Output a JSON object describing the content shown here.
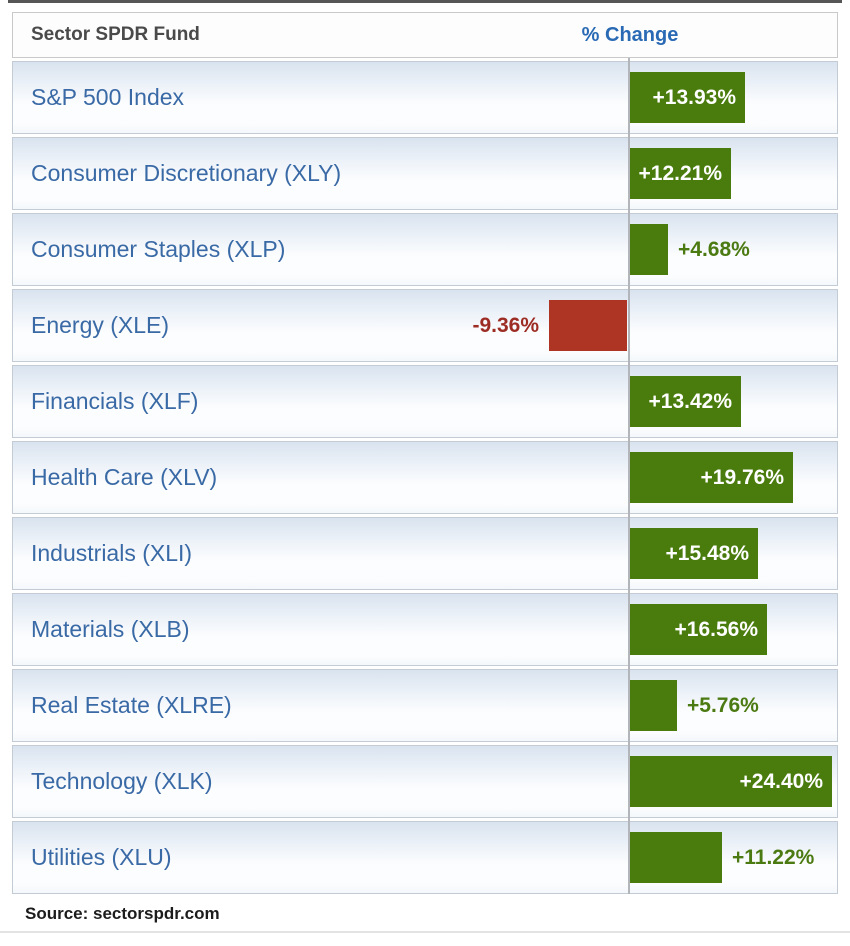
{
  "header": {
    "fund_column": "Sector SPDR Fund",
    "change_column": "% Change"
  },
  "footer": {
    "source": "Source: sectorspdr.com"
  },
  "chart_data": {
    "type": "bar",
    "orientation": "horizontal",
    "value_unit": "%",
    "baseline": 0,
    "axis_max_abs": 24.4,
    "positive_color": "#497c0c",
    "negative_color": "#ae3524",
    "inside_label_color": "#ffffff",
    "positive_label_color": "#4c7a12",
    "negative_label_color": "#9d2d24",
    "rows": [
      {
        "label": "S&P 500 Index",
        "value": 13.93,
        "display": "+13.93%",
        "label_position": "inside"
      },
      {
        "label": "Consumer Discretionary (XLY)",
        "value": 12.21,
        "display": "+12.21%",
        "label_position": "inside"
      },
      {
        "label": "Consumer Staples (XLP)",
        "value": 4.68,
        "display": "+4.68%",
        "label_position": "outside"
      },
      {
        "label": "Energy (XLE)",
        "value": -9.36,
        "display": "-9.36%",
        "label_position": "outside"
      },
      {
        "label": "Financials (XLF)",
        "value": 13.42,
        "display": "+13.42%",
        "label_position": "inside"
      },
      {
        "label": "Health Care (XLV)",
        "value": 19.76,
        "display": "+19.76%",
        "label_position": "inside"
      },
      {
        "label": "Industrials (XLI)",
        "value": 15.48,
        "display": "+15.48%",
        "label_position": "inside"
      },
      {
        "label": "Materials (XLB)",
        "value": 16.56,
        "display": "+16.56%",
        "label_position": "inside"
      },
      {
        "label": "Real Estate (XLRE)",
        "value": 5.76,
        "display": "+5.76%",
        "label_position": "outside"
      },
      {
        "label": "Technology (XLK)",
        "value": 24.4,
        "display": "+24.40%",
        "label_position": "inside"
      },
      {
        "label": "Utilities (XLU)",
        "value": 11.22,
        "display": "+11.22%",
        "label_position": "outside"
      }
    ]
  }
}
